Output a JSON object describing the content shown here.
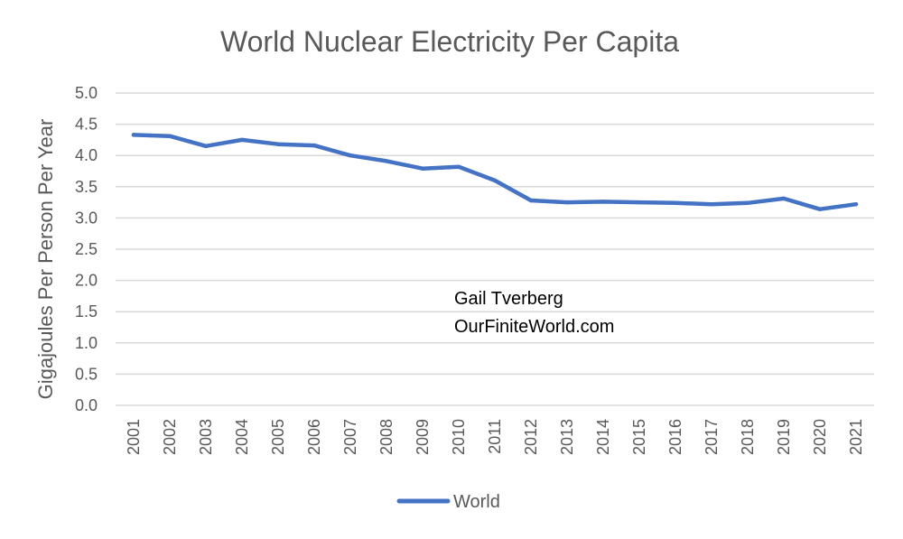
{
  "chart_data": {
    "type": "line",
    "title": "World Nuclear Electricity Per Capita",
    "xlabel": "",
    "ylabel": "Gigajoules Per Person Per Year",
    "ylim": [
      0,
      5.0
    ],
    "ytick_labels": [
      "0.0",
      "0.5",
      "1.0",
      "1.5",
      "2.0",
      "2.5",
      "3.0",
      "3.5",
      "4.0",
      "4.5",
      "5.0"
    ],
    "categories": [
      "2001",
      "2002",
      "2003",
      "2004",
      "2005",
      "2006",
      "2007",
      "2008",
      "2009",
      "2010",
      "2011",
      "2012",
      "2013",
      "2014",
      "2015",
      "2016",
      "2017",
      "2018",
      "2019",
      "2020",
      "2021"
    ],
    "series": [
      {
        "name": "World",
        "color": "#4472c4",
        "values": [
          4.33,
          4.31,
          4.15,
          4.25,
          4.18,
          4.16,
          4.0,
          3.91,
          3.79,
          3.82,
          3.6,
          3.28,
          3.25,
          3.26,
          3.25,
          3.24,
          3.22,
          3.24,
          3.31,
          3.14,
          3.22
        ]
      }
    ],
    "grid": true,
    "legend_position": "bottom",
    "annotations": [
      "Gail Tverberg",
      "OurFiniteWorld.com"
    ]
  }
}
